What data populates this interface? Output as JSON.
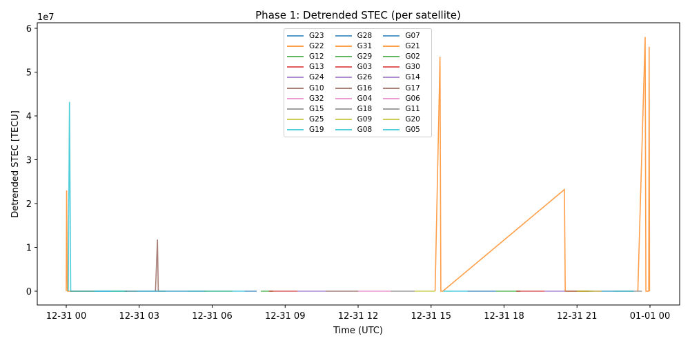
{
  "chart_data": {
    "type": "line",
    "title": "Phase 1: Detrended STEC (per satellite)",
    "xlabel": "Time (UTC)",
    "ylabel": "Detrended STEC [TECU]",
    "y_scale_label": "1e7",
    "xlim": [
      "12-31 -01:12",
      "01-01 01:13"
    ],
    "ylim": [
      -3150000,
      61300000
    ],
    "x_ticks": [
      "12-31 00",
      "12-31 03",
      "12-31 06",
      "12-31 09",
      "12-31 12",
      "12-31 15",
      "12-31 18",
      "12-31 21",
      "01-01 00"
    ],
    "y_ticks": [
      "0",
      "1",
      "2",
      "3",
      "4",
      "5",
      "6"
    ],
    "grid": false,
    "legend_placement": "upper center",
    "legend_columns": 3,
    "series": [
      {
        "name": "G23",
        "color": "#1f77b4",
        "points": [
          [
            "12-31 00:10",
            0
          ],
          [
            "12-31 01:50",
            0
          ]
        ]
      },
      {
        "name": "G22",
        "color": "#ff7f0e",
        "points": [
          [
            "12-31 00:00",
            0
          ],
          [
            "12-31 00:01",
            23000000
          ],
          [
            "12-31 00:03",
            0
          ],
          [
            "12-31 01:10",
            0
          ]
        ]
      },
      {
        "name": "G12",
        "color": "#2ca02c",
        "points": [
          [
            "12-31 01:50",
            0
          ],
          [
            "12-31 02:30",
            0
          ]
        ]
      },
      {
        "name": "G13",
        "color": "#d62728",
        "points": [
          [
            "12-31 02:25",
            0
          ],
          [
            "12-31 02:55",
            0
          ]
        ]
      },
      {
        "name": "G24",
        "color": "#9467bd",
        "points": [
          [
            "12-31 02:55",
            0
          ],
          [
            "12-31 03:45",
            0
          ]
        ]
      },
      {
        "name": "G10",
        "color": "#8c564b",
        "points": [
          [
            "12-31 03:40",
            0
          ],
          [
            "12-31 03:45",
            11800000
          ],
          [
            "12-31 03:47",
            0
          ],
          [
            "12-31 04:05",
            0
          ]
        ]
      },
      {
        "name": "G32",
        "color": "#e377c2",
        "points": [
          [
            "12-31 04:05",
            0
          ],
          [
            "12-31 05:00",
            0
          ]
        ]
      },
      {
        "name": "G15",
        "color": "#7f7f7f",
        "points": [
          [
            "12-31 05:00",
            0
          ],
          [
            "12-31 05:45",
            0
          ]
        ]
      },
      {
        "name": "G25",
        "color": "#bcbd22",
        "points": [
          [
            "12-31 05:40",
            0
          ],
          [
            "12-31 06:50",
            0
          ]
        ]
      },
      {
        "name": "G19",
        "color": "#17becf",
        "points": [
          [
            "12-31 00:05",
            0
          ],
          [
            "12-31 00:08",
            43200000
          ],
          [
            "12-31 00:11",
            0
          ],
          [
            "12-31 00:50",
            0
          ],
          [
            "12-31 06:45",
            0
          ],
          [
            "12-31 07:20",
            0
          ]
        ]
      },
      {
        "name": "G28",
        "color": "#1f77b4",
        "points": [
          [
            "12-31 07:20",
            0
          ],
          [
            "12-31 07:50",
            0
          ]
        ]
      },
      {
        "name": "G31",
        "color": "#ff7f0e",
        "points": [
          [
            "12-31 15:10",
            0
          ],
          [
            "12-31 15:22",
            53500000
          ],
          [
            "12-31 15:24",
            0
          ],
          [
            "12-31 15:29",
            0
          ],
          [
            "12-31 20:29",
            23200000
          ],
          [
            "12-31 20:31",
            0
          ],
          [
            "12-31 21:30",
            0
          ]
        ]
      },
      {
        "name": "G29",
        "color": "#2ca02c",
        "points": [
          [
            "12-31 08:00",
            0
          ],
          [
            "12-31 08:30",
            0
          ]
        ]
      },
      {
        "name": "G03",
        "color": "#d62728",
        "points": [
          [
            "12-31 08:20",
            0
          ],
          [
            "12-31 09:30",
            0
          ]
        ]
      },
      {
        "name": "G26",
        "color": "#9467bd",
        "points": [
          [
            "12-31 09:30",
            0
          ],
          [
            "12-31 10:40",
            0
          ]
        ]
      },
      {
        "name": "G16",
        "color": "#8c564b",
        "points": [
          [
            "12-31 10:40",
            0
          ],
          [
            "12-31 12:00",
            0
          ]
        ]
      },
      {
        "name": "G04",
        "color": "#e377c2",
        "points": [
          [
            "12-31 12:00",
            0
          ],
          [
            "12-31 13:20",
            0
          ]
        ]
      },
      {
        "name": "G18",
        "color": "#7f7f7f",
        "points": [
          [
            "12-31 13:20",
            0
          ],
          [
            "12-31 14:20",
            0
          ]
        ]
      },
      {
        "name": "G09",
        "color": "#bcbd22",
        "points": [
          [
            "12-31 14:20",
            0
          ],
          [
            "12-31 15:10",
            0
          ]
        ]
      },
      {
        "name": "G08",
        "color": "#17becf",
        "points": [
          [
            "12-31 15:30",
            0
          ],
          [
            "12-31 16:30",
            0
          ]
        ]
      },
      {
        "name": "G07",
        "color": "#1f77b4",
        "points": [
          [
            "12-31 16:30",
            0
          ],
          [
            "12-31 17:40",
            0
          ]
        ]
      },
      {
        "name": "G21",
        "color": "#ff7f0e",
        "points": [
          [
            "12-31 23:30",
            0
          ],
          [
            "12-31 23:48",
            58000000
          ],
          [
            "12-31 23:50",
            0
          ],
          [
            "12-31 23:57",
            0
          ],
          [
            "12-31 23:58",
            55800000
          ],
          [
            "12-31 23:59",
            0
          ]
        ]
      },
      {
        "name": "G02",
        "color": "#2ca02c",
        "points": [
          [
            "12-31 17:40",
            0
          ],
          [
            "12-31 18:40",
            0
          ]
        ]
      },
      {
        "name": "G30",
        "color": "#d62728",
        "points": [
          [
            "12-31 18:30",
            0
          ],
          [
            "12-31 19:40",
            0
          ]
        ]
      },
      {
        "name": "G14",
        "color": "#9467bd",
        "points": [
          [
            "12-31 19:40",
            0
          ],
          [
            "12-31 20:30",
            0
          ]
        ]
      },
      {
        "name": "G17",
        "color": "#8c564b",
        "points": [
          [
            "12-31 20:30",
            0
          ],
          [
            "12-31 21:40",
            0
          ]
        ]
      },
      {
        "name": "G06",
        "color": "#e377c2",
        "points": [
          [
            "12-31 21:40",
            0
          ],
          [
            "12-31 22:30",
            0
          ]
        ]
      },
      {
        "name": "G11",
        "color": "#7f7f7f",
        "points": [
          [
            "12-31 22:30",
            0
          ],
          [
            "12-31 23:40",
            0
          ]
        ]
      },
      {
        "name": "G20",
        "color": "#bcbd22",
        "points": [
          [
            "12-31 21:00",
            0
          ],
          [
            "12-31 22:00",
            0
          ]
        ]
      },
      {
        "name": "G05",
        "color": "#17becf",
        "points": [
          [
            "12-31 22:00",
            0
          ],
          [
            "12-31 23:20",
            0
          ]
        ]
      }
    ]
  }
}
